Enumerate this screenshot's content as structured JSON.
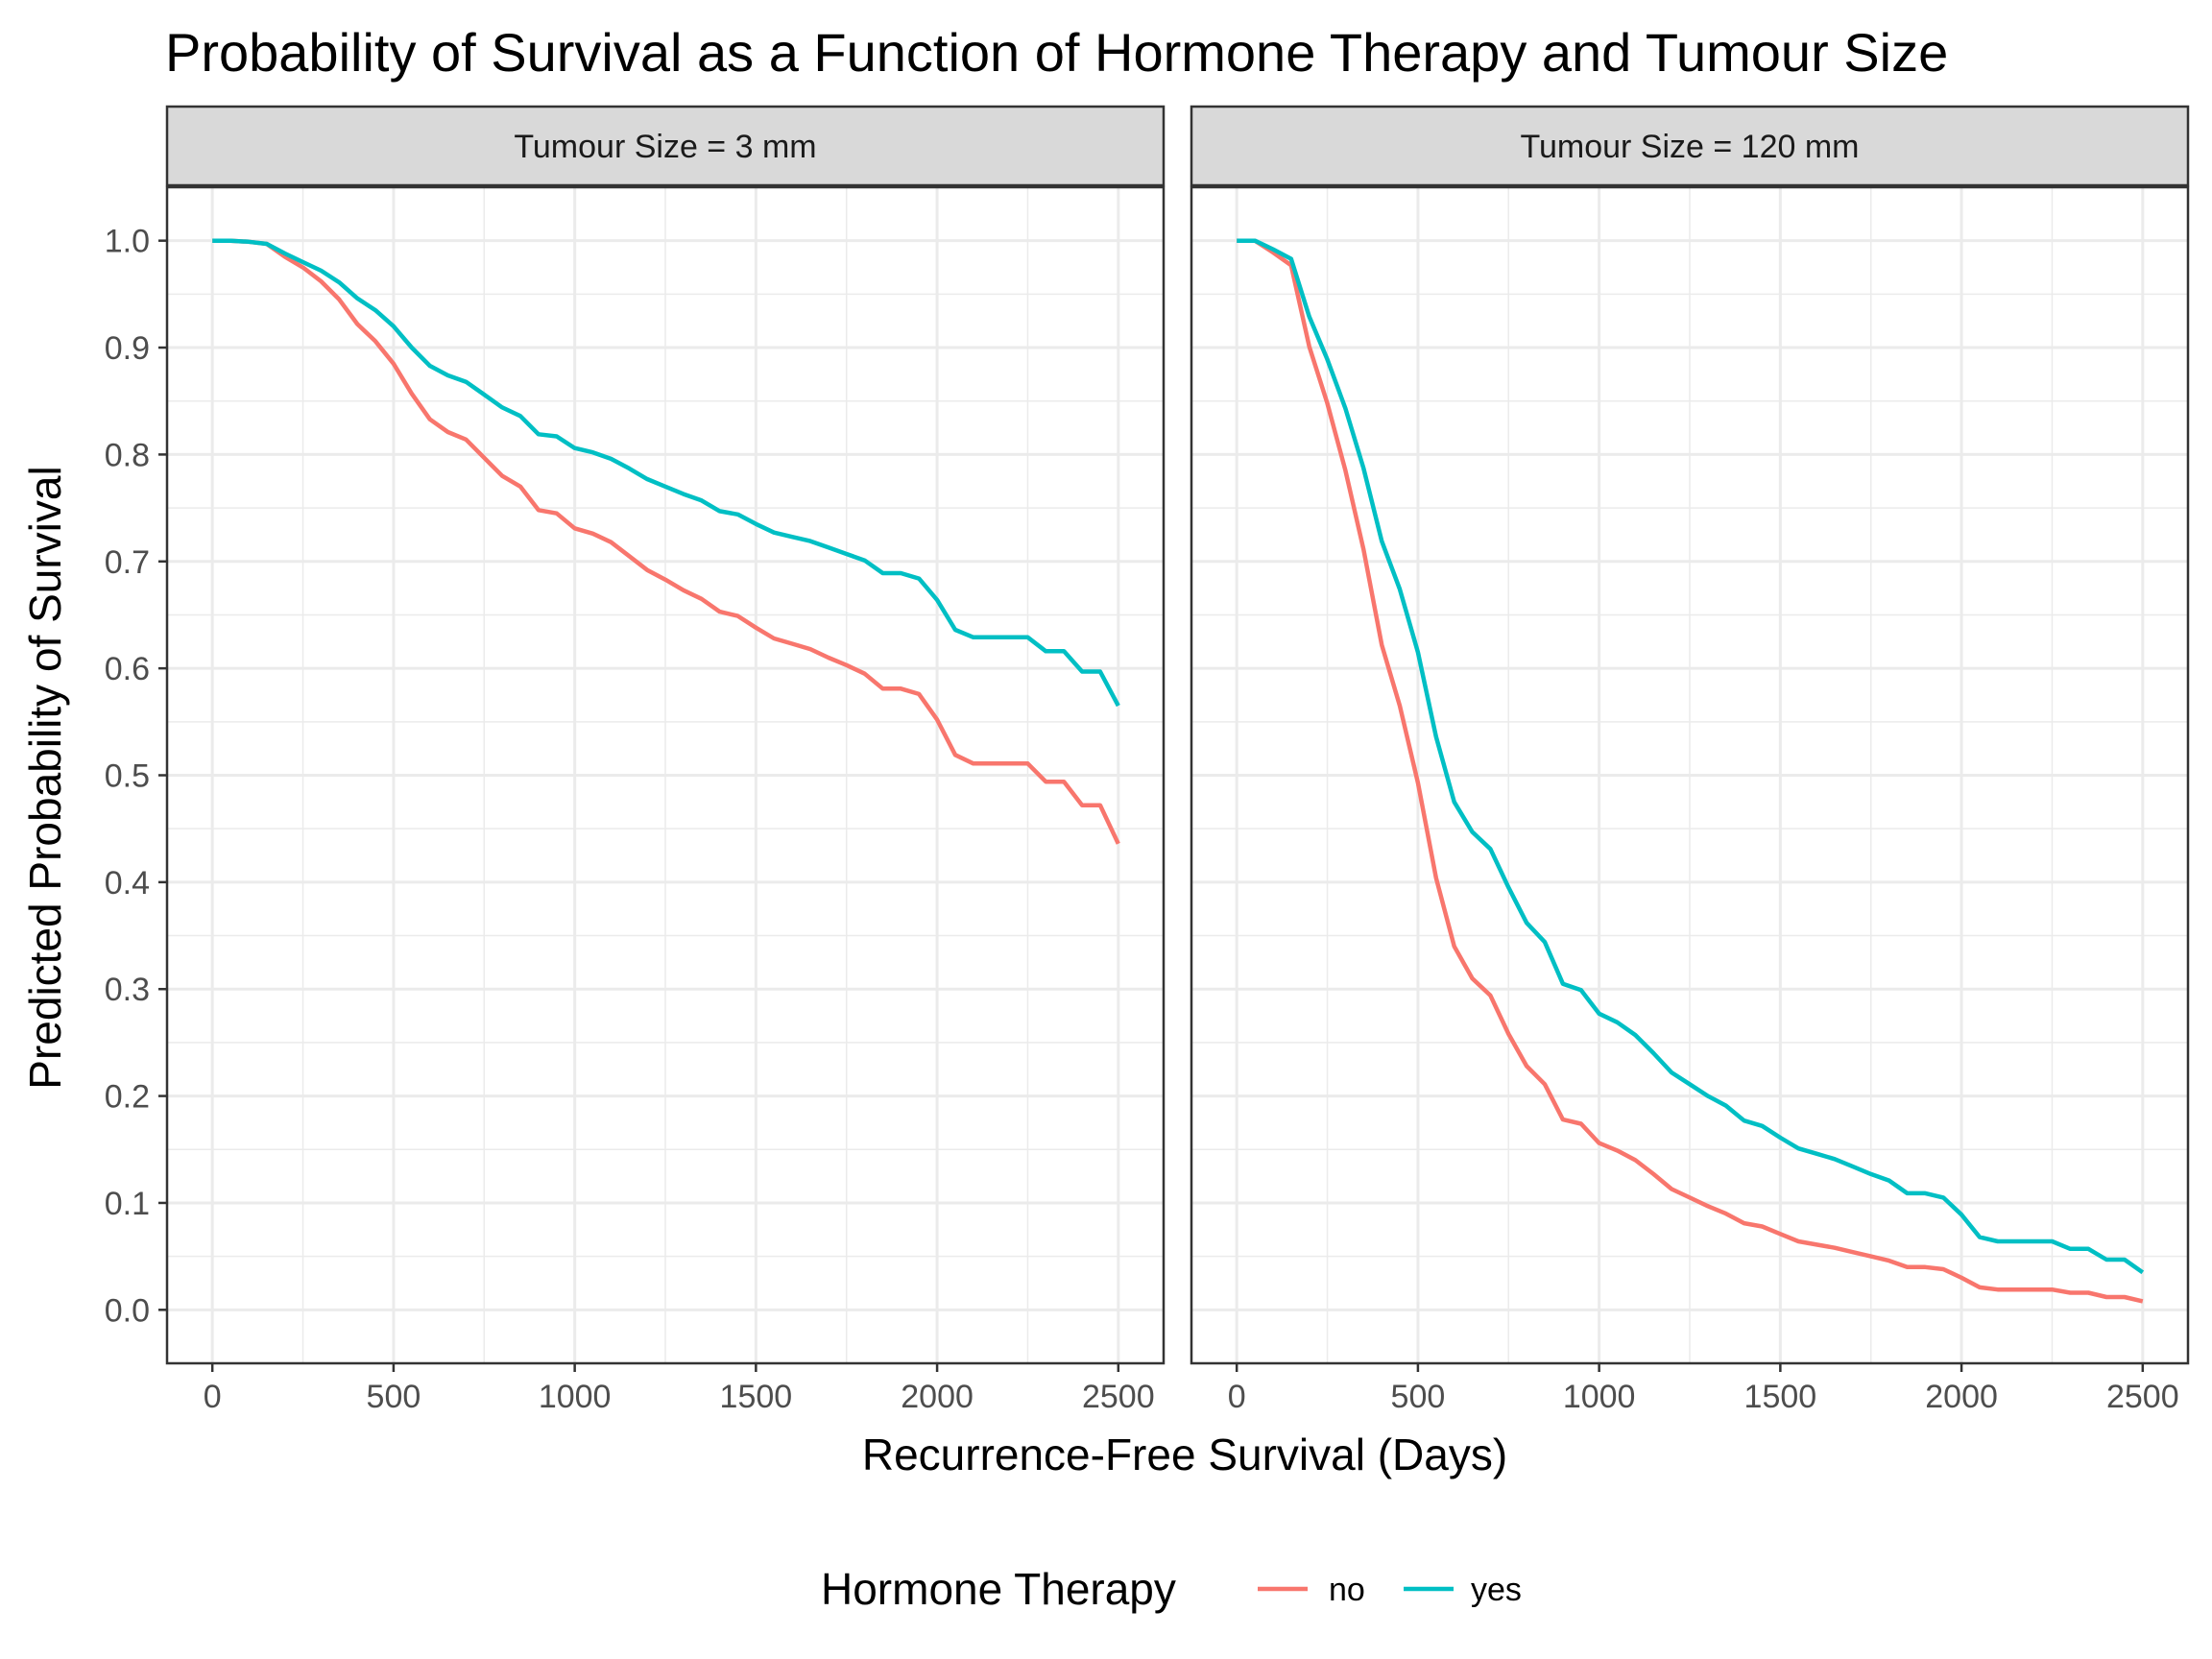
{
  "chart_data": {
    "type": "line",
    "title": "Probability of Survival as a Function of Hormone Therapy and Tumour Size",
    "xlabel": "Recurrence-Free Survival (Days)",
    "ylabel": "Predicted Probability of Survival",
    "xlim": [
      -125,
      2625
    ],
    "ylim": [
      -0.05,
      1.05
    ],
    "x_ticks": [
      0,
      500,
      1000,
      1500,
      2000,
      2500
    ],
    "x_tick_labels": [
      "0",
      "500",
      "1000",
      "1500",
      "2000",
      "2500"
    ],
    "y_ticks": [
      0,
      0.1,
      0.2,
      0.3,
      0.4,
      0.5,
      0.6,
      0.7,
      0.8,
      0.9,
      1.0
    ],
    "y_tick_labels": [
      "0.0",
      "0.1",
      "0.2",
      "0.3",
      "0.4",
      "0.5",
      "0.6",
      "0.7",
      "0.8",
      "0.9",
      "1.0"
    ],
    "grid": true,
    "legend": {
      "title": "Hormone Therapy",
      "position": "bottom",
      "entries": [
        {
          "label": "no",
          "color": "#F8766D"
        },
        {
          "label": "yes",
          "color": "#00BFC4"
        }
      ]
    },
    "x": [
      0,
      50,
      100,
      150,
      200,
      250,
      300,
      350,
      400,
      450,
      500,
      550,
      600,
      650,
      700,
      750,
      800,
      850,
      900,
      950,
      1000,
      1050,
      1100,
      1150,
      1200,
      1250,
      1300,
      1350,
      1400,
      1450,
      1500,
      1550,
      1600,
      1650,
      1700,
      1750,
      1800,
      1850,
      1900,
      1950,
      2000,
      2050,
      2100,
      2150,
      2200,
      2250,
      2300,
      2350,
      2400,
      2450,
      2500
    ],
    "panels": [
      {
        "strip_label": "Tumour Size = 3 mm",
        "series": [
          {
            "name": "no",
            "color": "#F8766D",
            "values": [
              1.0,
              1.0,
              0.999,
              0.997,
              0.985,
              0.975,
              0.962,
              0.945,
              0.922,
              0.906,
              0.885,
              0.857,
              0.833,
              0.821,
              0.814,
              0.797,
              0.78,
              0.77,
              0.748,
              0.745,
              0.731,
              0.726,
              0.718,
              0.705,
              0.692,
              0.683,
              0.673,
              0.665,
              0.653,
              0.649,
              0.638,
              0.628,
              0.623,
              0.618,
              0.61,
              0.603,
              0.595,
              0.581,
              0.581,
              0.576,
              0.552,
              0.519,
              0.511,
              0.511,
              0.511,
              0.511,
              0.494,
              0.494,
              0.472,
              0.472,
              0.436
            ]
          },
          {
            "name": "yes",
            "color": "#00BFC4",
            "values": [
              1.0,
              1.0,
              0.999,
              0.997,
              0.988,
              0.98,
              0.972,
              0.961,
              0.946,
              0.935,
              0.92,
              0.9,
              0.883,
              0.874,
              0.868,
              0.856,
              0.844,
              0.836,
              0.819,
              0.817,
              0.806,
              0.802,
              0.796,
              0.787,
              0.777,
              0.77,
              0.763,
              0.757,
              0.747,
              0.744,
              0.735,
              0.727,
              0.723,
              0.719,
              0.713,
              0.707,
              0.701,
              0.689,
              0.689,
              0.684,
              0.664,
              0.636,
              0.629,
              0.629,
              0.629,
              0.629,
              0.616,
              0.616,
              0.597,
              0.597,
              0.565
            ]
          }
        ]
      },
      {
        "strip_label": "Tumour Size = 120 mm",
        "series": [
          {
            "name": "no",
            "color": "#F8766D",
            "values": [
              1.0,
              1.0,
              0.989,
              0.977,
              0.901,
              0.848,
              0.785,
              0.711,
              0.622,
              0.565,
              0.493,
              0.404,
              0.34,
              0.31,
              0.294,
              0.258,
              0.228,
              0.211,
              0.178,
              0.174,
              0.156,
              0.149,
              0.14,
              0.127,
              0.113,
              0.105,
              0.097,
              0.09,
              0.081,
              0.078,
              0.071,
              0.064,
              0.061,
              0.058,
              0.054,
              0.05,
              0.046,
              0.04,
              0.04,
              0.038,
              0.03,
              0.021,
              0.019,
              0.019,
              0.019,
              0.019,
              0.016,
              0.016,
              0.012,
              0.012,
              0.008
            ]
          },
          {
            "name": "yes",
            "color": "#00BFC4",
            "values": [
              1.0,
              1.0,
              0.992,
              0.983,
              0.929,
              0.889,
              0.843,
              0.787,
              0.719,
              0.674,
              0.615,
              0.536,
              0.475,
              0.447,
              0.431,
              0.395,
              0.362,
              0.344,
              0.305,
              0.299,
              0.277,
              0.269,
              0.257,
              0.24,
              0.222,
              0.211,
              0.2,
              0.191,
              0.177,
              0.172,
              0.161,
              0.151,
              0.146,
              0.141,
              0.134,
              0.127,
              0.121,
              0.109,
              0.109,
              0.105,
              0.089,
              0.068,
              0.064,
              0.064,
              0.064,
              0.064,
              0.057,
              0.057,
              0.047,
              0.047,
              0.035
            ]
          }
        ]
      }
    ]
  }
}
